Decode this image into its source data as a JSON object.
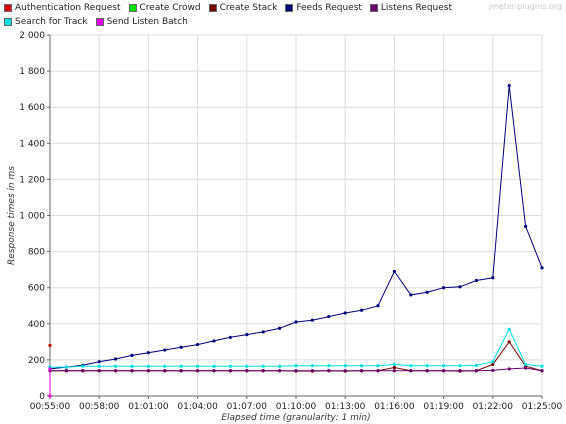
{
  "watermark": "jmeter-plugins.org",
  "chart_data": {
    "type": "line",
    "xlabel": "Elapsed time (granularity: 1 min)",
    "ylabel": "Response times in ms",
    "ylim": [
      0,
      2000
    ],
    "xlim": [
      "00:55:00",
      "01:25:00"
    ],
    "x_ticks": [
      "00:55:00",
      "00:58:00",
      "01:01:00",
      "01:04:00",
      "01:07:00",
      "01:10:00",
      "01:13:00",
      "01:16:00",
      "01:19:00",
      "01:22:00",
      "01:25:00"
    ],
    "y_ticks": [
      "0",
      "200",
      "400",
      "600",
      "800",
      "1 000",
      "1 200",
      "1 400",
      "1 600",
      "1 800",
      "2 000"
    ],
    "grid": true,
    "legend_position": "top",
    "x": [
      "00:55:00",
      "00:56:00",
      "00:57:00",
      "00:58:00",
      "00:59:00",
      "01:00:00",
      "01:01:00",
      "01:02:00",
      "01:03:00",
      "01:04:00",
      "01:05:00",
      "01:06:00",
      "01:07:00",
      "01:08:00",
      "01:09:00",
      "01:10:00",
      "01:11:00",
      "01:12:00",
      "01:13:00",
      "01:14:00",
      "01:15:00",
      "01:16:00",
      "01:17:00",
      "01:18:00",
      "01:19:00",
      "01:20:00",
      "01:21:00",
      "01:22:00",
      "01:23:00",
      "01:24:00",
      "01:25:00"
    ],
    "series": [
      {
        "name": "Authentication Request",
        "color": "#e00000",
        "points": [
          [
            "00:55:00",
            280
          ]
        ]
      },
      {
        "name": "Create Crowd",
        "color": "#00e000",
        "points": []
      },
      {
        "name": "Create Stack",
        "color": "#7a0000",
        "points": [
          [
            "00:55:00",
            140
          ],
          [
            "00:56:00",
            140
          ],
          [
            "00:57:00",
            140
          ],
          [
            "00:58:00",
            140
          ],
          [
            "00:59:00",
            140
          ],
          [
            "01:00:00",
            140
          ],
          [
            "01:01:00",
            140
          ],
          [
            "01:02:00",
            140
          ],
          [
            "01:03:00",
            140
          ],
          [
            "01:04:00",
            140
          ],
          [
            "01:05:00",
            140
          ],
          [
            "01:06:00",
            140
          ],
          [
            "01:07:00",
            140
          ],
          [
            "01:08:00",
            140
          ],
          [
            "01:09:00",
            140
          ],
          [
            "01:10:00",
            138
          ],
          [
            "01:11:00",
            138
          ],
          [
            "01:12:00",
            140
          ],
          [
            "01:13:00",
            138
          ],
          [
            "01:14:00",
            140
          ],
          [
            "01:15:00",
            140
          ],
          [
            "01:16:00",
            158
          ],
          [
            "01:17:00",
            140
          ],
          [
            "01:18:00",
            140
          ],
          [
            "01:19:00",
            140
          ],
          [
            "01:20:00",
            138
          ],
          [
            "01:21:00",
            140
          ],
          [
            "01:22:00",
            175
          ],
          [
            "01:23:00",
            300
          ],
          [
            "01:24:00",
            165
          ],
          [
            "01:25:00",
            140
          ]
        ]
      },
      {
        "name": "Feeds Request",
        "color": "#00007a",
        "points": [
          [
            "00:55:00",
            150
          ],
          [
            "00:56:00",
            160
          ],
          [
            "00:57:00",
            170
          ],
          [
            "00:58:00",
            190
          ],
          [
            "00:59:00",
            205
          ],
          [
            "01:00:00",
            225
          ],
          [
            "01:01:00",
            240
          ],
          [
            "01:02:00",
            255
          ],
          [
            "01:03:00",
            270
          ],
          [
            "01:04:00",
            285
          ],
          [
            "01:05:00",
            305
          ],
          [
            "01:06:00",
            325
          ],
          [
            "01:07:00",
            340
          ],
          [
            "01:08:00",
            355
          ],
          [
            "01:09:00",
            375
          ],
          [
            "01:10:00",
            410
          ],
          [
            "01:11:00",
            420
          ],
          [
            "01:12:00",
            440
          ],
          [
            "01:13:00",
            460
          ],
          [
            "01:14:00",
            475
          ],
          [
            "01:15:00",
            500
          ],
          [
            "01:16:00",
            690
          ],
          [
            "01:17:00",
            560
          ],
          [
            "01:18:00",
            575
          ],
          [
            "01:19:00",
            600
          ],
          [
            "01:20:00",
            605
          ],
          [
            "01:21:00",
            640
          ],
          [
            "01:22:00",
            655
          ],
          [
            "01:23:00",
            1720
          ],
          [
            "01:24:00",
            940
          ],
          [
            "01:25:00",
            710
          ]
        ]
      },
      {
        "name": "Listens Request",
        "color": "#6a006a",
        "points": [
          [
            "00:55:00",
            140
          ],
          [
            "00:56:00",
            140
          ],
          [
            "00:57:00",
            140
          ],
          [
            "00:58:00",
            140
          ],
          [
            "00:59:00",
            140
          ],
          [
            "01:00:00",
            140
          ],
          [
            "01:01:00",
            140
          ],
          [
            "01:02:00",
            140
          ],
          [
            "01:03:00",
            140
          ],
          [
            "01:04:00",
            140
          ],
          [
            "01:05:00",
            140
          ],
          [
            "01:06:00",
            140
          ],
          [
            "01:07:00",
            140
          ],
          [
            "01:08:00",
            140
          ],
          [
            "01:09:00",
            140
          ],
          [
            "01:10:00",
            140
          ],
          [
            "01:11:00",
            140
          ],
          [
            "01:12:00",
            140
          ],
          [
            "01:13:00",
            140
          ],
          [
            "01:14:00",
            140
          ],
          [
            "01:15:00",
            140
          ],
          [
            "01:16:00",
            140
          ],
          [
            "01:17:00",
            140
          ],
          [
            "01:18:00",
            140
          ],
          [
            "01:19:00",
            140
          ],
          [
            "01:20:00",
            140
          ],
          [
            "01:21:00",
            140
          ],
          [
            "01:22:00",
            142
          ],
          [
            "01:23:00",
            150
          ],
          [
            "01:24:00",
            155
          ],
          [
            "01:25:00",
            140
          ]
        ]
      },
      {
        "name": "Search for Track",
        "color": "#00e0e0",
        "points": [
          [
            "00:55:00",
            160
          ],
          [
            "00:56:00",
            160
          ],
          [
            "00:57:00",
            165
          ],
          [
            "00:58:00",
            165
          ],
          [
            "00:59:00",
            165
          ],
          [
            "01:00:00",
            165
          ],
          [
            "01:01:00",
            165
          ],
          [
            "01:02:00",
            165
          ],
          [
            "01:03:00",
            165
          ],
          [
            "01:04:00",
            165
          ],
          [
            "01:05:00",
            165
          ],
          [
            "01:06:00",
            165
          ],
          [
            "01:07:00",
            165
          ],
          [
            "01:08:00",
            165
          ],
          [
            "01:09:00",
            165
          ],
          [
            "01:10:00",
            168
          ],
          [
            "01:11:00",
            168
          ],
          [
            "01:12:00",
            168
          ],
          [
            "01:13:00",
            168
          ],
          [
            "01:14:00",
            168
          ],
          [
            "01:15:00",
            168
          ],
          [
            "01:16:00",
            175
          ],
          [
            "01:17:00",
            168
          ],
          [
            "01:18:00",
            168
          ],
          [
            "01:19:00",
            168
          ],
          [
            "01:20:00",
            168
          ],
          [
            "01:21:00",
            170
          ],
          [
            "01:22:00",
            190
          ],
          [
            "01:23:00",
            370
          ],
          [
            "01:24:00",
            175
          ],
          [
            "01:25:00",
            165
          ]
        ]
      },
      {
        "name": "Send Listen Batch",
        "color": "#e000e0",
        "points": [
          [
            "00:55:00",
            150
          ],
          [
            "00:55:00",
            0
          ]
        ]
      }
    ]
  }
}
